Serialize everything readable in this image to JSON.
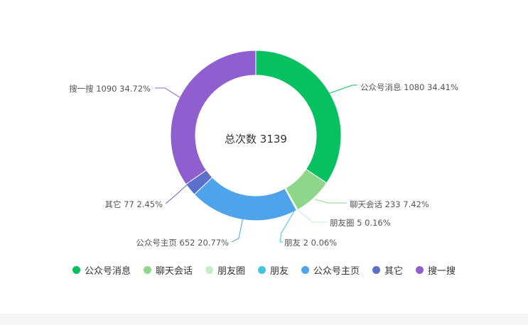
{
  "chart_data": {
    "type": "pie",
    "variant": "donut",
    "center_label": "总次数 3139",
    "legend_position": "bottom",
    "total": 3139,
    "slices": [
      {
        "name": "公众号消息",
        "value": 1080,
        "percent": "34.41%",
        "label": "公众号消息 1080 34.41%",
        "color": "#07c160"
      },
      {
        "name": "聊天会话",
        "value": 233,
        "percent": "7.42%",
        "label": "聊天会话 233 7.42%",
        "color": "#8dd68a"
      },
      {
        "name": "朋友圈",
        "value": 5,
        "percent": "0.16%",
        "label": "朋友圈 5 0.16%",
        "color": "#c6ecc8"
      },
      {
        "name": "朋友",
        "value": 2,
        "percent": "0.06%",
        "label": "朋友 2 0.06%",
        "color": "#3fc6de"
      },
      {
        "name": "公众号主页",
        "value": 652,
        "percent": "20.77%",
        "label": "公众号主页 652 20.77%",
        "color": "#4fa3ea"
      },
      {
        "name": "其它",
        "value": 77,
        "percent": "2.45%",
        "label": "其它 77 2.45%",
        "color": "#5b6fcc"
      },
      {
        "name": "搜一搜",
        "value": 1090,
        "percent": "34.72%",
        "label": "搜一搜 1090 34.72%",
        "color": "#8f5fcf"
      }
    ]
  }
}
